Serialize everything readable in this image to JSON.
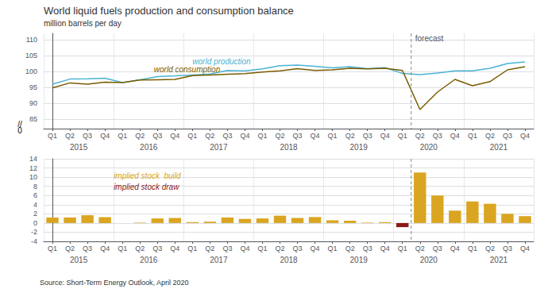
{
  "chart_data": [
    {
      "type": "line",
      "title": "World liquid fuels production and consumption balance",
      "subtitle": "million barrels per day",
      "categories": [
        "Q1",
        "Q2",
        "Q3",
        "Q4",
        "Q1",
        "Q2",
        "Q3",
        "Q4",
        "Q1",
        "Q2",
        "Q3",
        "Q4",
        "Q1",
        "Q2",
        "Q3",
        "Q4",
        "Q1",
        "Q2",
        "Q3",
        "Q4",
        "Q1",
        "Q2",
        "Q3",
        "Q4",
        "Q1",
        "Q2",
        "Q3",
        "Q4"
      ],
      "category_groups": [
        "2015",
        "2016",
        "2017",
        "2018",
        "2019",
        "2020",
        "2021"
      ],
      "series": [
        {
          "name": "world production",
          "color": "#4ab3d4",
          "label_x": 8,
          "label_y": 102.0,
          "values": [
            96.0,
            97.6,
            97.7,
            97.9,
            96.5,
            97.4,
            98.4,
            98.6,
            98.9,
            99.2,
            100.3,
            100.2,
            100.8,
            101.8,
            102.0,
            101.6,
            101.1,
            101.5,
            100.9,
            101.2,
            99.4,
            99.0,
            99.5,
            100.2,
            100.2,
            101.0,
            102.5,
            103.0
          ]
        },
        {
          "name": "world consumption",
          "color": "#7a5c00",
          "label_x": 5.8,
          "label_y": 99.5,
          "values": [
            94.8,
            96.4,
            96.0,
            96.6,
            96.5,
            97.3,
            97.4,
            97.5,
            98.7,
            98.9,
            99.1,
            99.3,
            99.8,
            100.2,
            100.9,
            100.3,
            100.5,
            101.0,
            100.8,
            101.0,
            100.3,
            88.0,
            93.5,
            97.5,
            95.5,
            96.8,
            100.5,
            101.5
          ]
        }
      ],
      "ylim": [
        82,
        112
      ],
      "yticks": [
        85,
        90,
        95,
        100,
        105,
        110
      ],
      "grid": true,
      "annotations": [
        {
          "text": "forecast",
          "x": 20.5,
          "y": 109.2,
          "line_style": "dashed"
        },
        {
          "text": "//",
          "y": 83.5
        },
        {
          "text": "0",
          "y": 81.5
        }
      ]
    },
    {
      "type": "bar",
      "categories": [
        "Q1",
        "Q2",
        "Q3",
        "Q4",
        "Q1",
        "Q2",
        "Q3",
        "Q4",
        "Q1",
        "Q2",
        "Q3",
        "Q4",
        "Q1",
        "Q2",
        "Q3",
        "Q4",
        "Q1",
        "Q2",
        "Q3",
        "Q4",
        "Q1",
        "Q2",
        "Q3",
        "Q4",
        "Q1",
        "Q2",
        "Q3",
        "Q4"
      ],
      "category_groups": [
        "2015",
        "2016",
        "2017",
        "2018",
        "2019",
        "2020",
        "2021"
      ],
      "series": [
        {
          "name": "implied stock  build",
          "color": "#DAA520",
          "label_x": 3.5,
          "label_y": 9.5,
          "values": [
            1.2,
            1.2,
            1.7,
            1.3,
            0.0,
            0.1,
            1.0,
            1.1,
            0.2,
            0.3,
            1.2,
            0.9,
            1.0,
            1.6,
            1.1,
            1.3,
            0.6,
            0.5,
            0.1,
            0.2,
            0.0,
            11.0,
            6.0,
            2.7,
            4.7,
            4.2,
            2.0,
            1.5
          ]
        },
        {
          "name": "implied stock draw",
          "color": "#8B1A1A",
          "label_x": 3.5,
          "label_y": 7.0,
          "values": [
            0.0,
            0.0,
            0.0,
            0.0,
            0.0,
            0.0,
            0.0,
            0.0,
            0.0,
            0.0,
            0.0,
            0.0,
            0.0,
            0.0,
            0.0,
            0.0,
            0.0,
            0.0,
            0.0,
            0.0,
            -0.9,
            0.0,
            0.0,
            0.0,
            0.0,
            0.0,
            0.0,
            0.0
          ]
        }
      ],
      "ylim": [
        -4,
        14
      ],
      "yticks": [
        -4,
        -2,
        0,
        2,
        4,
        6,
        8,
        10,
        12,
        14
      ],
      "grid": true,
      "annotations": [
        {
          "x": 20.5,
          "line_style": "dashed"
        },
        {
          "text": "Source: Short-Term Energy Outlook, April 2020"
        }
      ]
    }
  ]
}
